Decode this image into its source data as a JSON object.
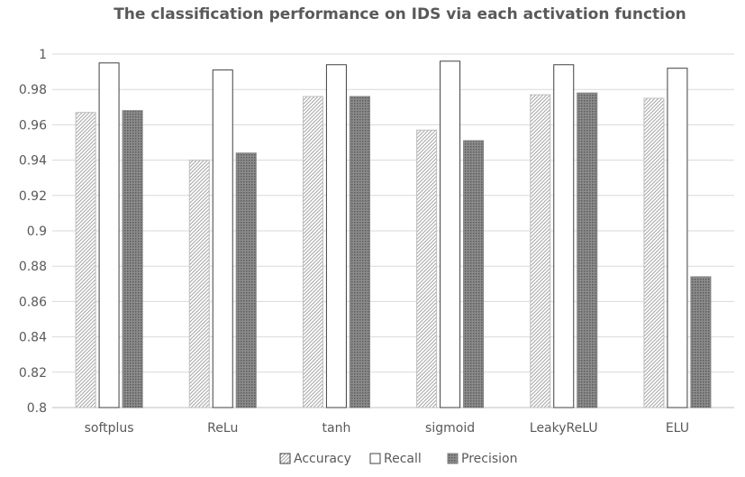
{
  "chart_data": {
    "type": "bar",
    "title": "The classification performance on IDS via each activation function",
    "xlabel": "",
    "ylabel": "",
    "ylim": [
      0.8,
      1.0
    ],
    "yticks": [
      "0.8",
      "0.82",
      "0.84",
      "0.86",
      "0.88",
      "0.9",
      "0.92",
      "0.94",
      "0.96",
      "0.98",
      "1"
    ],
    "grid": true,
    "legend_position": "bottom",
    "categories": [
      "softplus",
      "ReLu",
      "tanh",
      "sigmoid",
      "LeakyReLU",
      "ELU"
    ],
    "series": [
      {
        "name": "Accuracy",
        "values": [
          0.967,
          0.94,
          0.976,
          0.957,
          0.977,
          0.975
        ],
        "pattern": "diagonal-hatch",
        "color": "#bfbfbf"
      },
      {
        "name": "Recall",
        "values": [
          0.995,
          0.991,
          0.994,
          0.996,
          0.994,
          0.992
        ],
        "pattern": "solid-white",
        "color": "#ffffff"
      },
      {
        "name": "Precision",
        "values": [
          0.968,
          0.944,
          0.976,
          0.951,
          0.978,
          0.874
        ],
        "pattern": "dense-dots",
        "color": "#7f7f7f"
      }
    ]
  }
}
